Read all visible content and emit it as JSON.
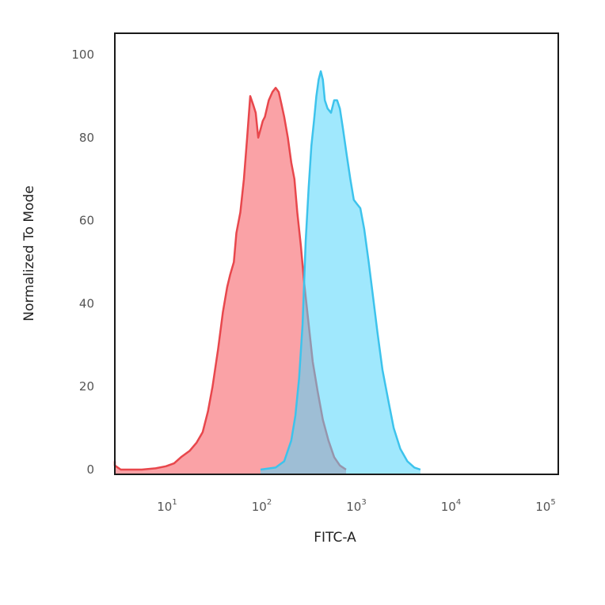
{
  "chart_data": {
    "type": "area",
    "xlabel": "FITC-A",
    "ylabel": "Normalized To Mode",
    "xscale": "log",
    "xlim": [
      2.2,
      100000
    ],
    "ylim": [
      0,
      100
    ],
    "yticks": [
      {
        "value": 0,
        "label": "0"
      },
      {
        "value": 20,
        "label": "20"
      },
      {
        "value": 40,
        "label": "40"
      },
      {
        "value": 60,
        "label": "60"
      },
      {
        "value": 80,
        "label": "80"
      },
      {
        "value": 100,
        "label": "100"
      }
    ],
    "xticks": [
      {
        "value": 10,
        "base": "10",
        "exp": "1"
      },
      {
        "value": 100,
        "base": "10",
        "exp": "2"
      },
      {
        "value": 1000,
        "base": "10",
        "exp": "3"
      },
      {
        "value": 10000,
        "base": "10",
        "exp": "4"
      },
      {
        "value": 100000,
        "base": "10",
        "exp": "5"
      }
    ],
    "grid": false,
    "legend": "none",
    "series": [
      {
        "color": "#e8474c",
        "fill": "#f98e92",
        "points": [
          [
            2.2,
            2
          ],
          [
            2.5,
            1
          ],
          [
            3,
            0
          ],
          [
            5,
            0
          ],
          [
            7,
            0.3
          ],
          [
            9,
            0.8
          ],
          [
            11,
            1.5
          ],
          [
            13,
            3
          ],
          [
            16,
            4.5
          ],
          [
            19,
            6.5
          ],
          [
            22,
            9
          ],
          [
            25,
            14
          ],
          [
            28,
            20
          ],
          [
            32,
            29
          ],
          [
            36,
            38
          ],
          [
            40,
            44
          ],
          [
            43,
            47
          ],
          [
            47,
            50
          ],
          [
            50,
            57
          ],
          [
            55,
            62
          ],
          [
            60,
            70
          ],
          [
            65,
            80
          ],
          [
            70,
            90
          ],
          [
            75,
            88
          ],
          [
            80,
            86
          ],
          [
            85,
            80
          ],
          [
            90,
            82
          ],
          [
            95,
            84
          ],
          [
            100,
            85
          ],
          [
            110,
            89
          ],
          [
            120,
            91
          ],
          [
            130,
            92
          ],
          [
            140,
            91
          ],
          [
            150,
            88
          ],
          [
            160,
            85
          ],
          [
            175,
            80
          ],
          [
            190,
            74
          ],
          [
            205,
            70
          ],
          [
            220,
            62
          ],
          [
            240,
            54
          ],
          [
            260,
            45
          ],
          [
            290,
            35
          ],
          [
            320,
            26
          ],
          [
            360,
            19
          ],
          [
            410,
            12
          ],
          [
            470,
            7
          ],
          [
            540,
            3
          ],
          [
            620,
            1
          ],
          [
            720,
            0
          ]
        ]
      },
      {
        "color": "#3dc3ec",
        "fill": "#52d6fc",
        "points": [
          [
            90,
            0
          ],
          [
            130,
            0.5
          ],
          [
            160,
            2
          ],
          [
            190,
            7
          ],
          [
            210,
            13
          ],
          [
            230,
            22
          ],
          [
            250,
            35
          ],
          [
            270,
            55
          ],
          [
            290,
            68
          ],
          [
            310,
            78
          ],
          [
            330,
            84
          ],
          [
            350,
            90
          ],
          [
            370,
            94
          ],
          [
            390,
            96
          ],
          [
            410,
            94
          ],
          [
            430,
            89
          ],
          [
            460,
            87
          ],
          [
            500,
            86
          ],
          [
            540,
            89
          ],
          [
            580,
            89
          ],
          [
            620,
            87
          ],
          [
            670,
            82
          ],
          [
            730,
            76
          ],
          [
            800,
            70
          ],
          [
            870,
            65
          ],
          [
            940,
            64
          ],
          [
            1020,
            63
          ],
          [
            1120,
            58
          ],
          [
            1250,
            50
          ],
          [
            1400,
            41
          ],
          [
            1550,
            33
          ],
          [
            1750,
            24
          ],
          [
            2000,
            17
          ],
          [
            2300,
            10
          ],
          [
            2700,
            5
          ],
          [
            3200,
            2
          ],
          [
            3800,
            0.5
          ],
          [
            4400,
            0
          ]
        ]
      }
    ]
  }
}
